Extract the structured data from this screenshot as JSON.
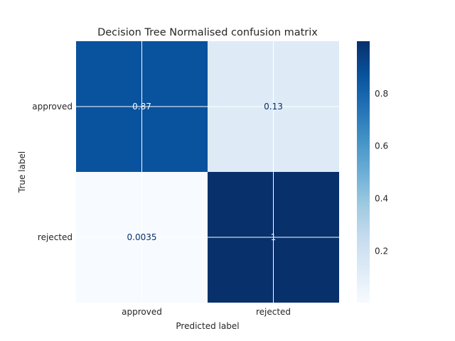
{
  "chart_data": {
    "type": "heatmap",
    "title": "Decision Tree Normalised confusion matrix",
    "xlabel": "Predicted label",
    "ylabel": "True label",
    "x_categories": [
      "approved",
      "rejected"
    ],
    "y_categories": [
      "approved",
      "rejected"
    ],
    "values": [
      [
        0.87,
        0.13
      ],
      [
        0.0035,
        1
      ]
    ],
    "value_labels": [
      [
        "0.87",
        "0.13"
      ],
      [
        "0.0035",
        "1"
      ]
    ],
    "colorscale": "Blues",
    "colorbar": {
      "range": [
        0.0035,
        1
      ],
      "ticks": [
        0.2,
        0.4,
        0.6,
        0.8
      ],
      "tick_labels": [
        "0.2",
        "0.4",
        "0.6",
        "0.8"
      ]
    },
    "grid": true
  },
  "colors": {
    "background": "#ffffff",
    "text_dark": "#08306b",
    "text_light": "#f7fbff",
    "grid": "#ffffff",
    "label": "#262626"
  }
}
